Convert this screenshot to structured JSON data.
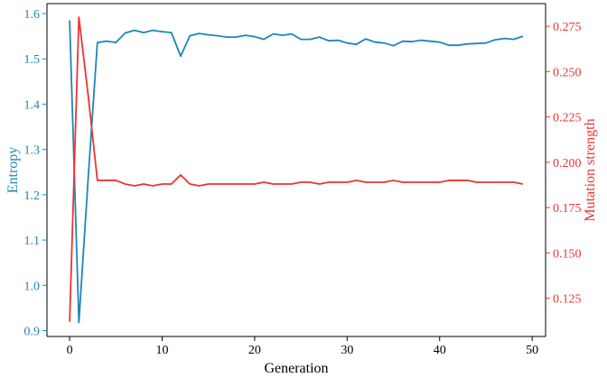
{
  "chart_data": {
    "type": "line",
    "title": "",
    "xlabel": "Generation",
    "ylabel_left": "Entropy",
    "ylabel_right": "Mutation strength",
    "xlim": [
      -2.45,
      51.45
    ],
    "ylim_left": [
      0.887,
      1.622
    ],
    "ylim_right": [
      0.1039,
      0.2875
    ],
    "xticks": [
      0,
      10,
      20,
      30,
      40,
      50
    ],
    "yticks_left": [
      0.9,
      1.0,
      1.1,
      1.2,
      1.3,
      1.4,
      1.5,
      1.6
    ],
    "yticks_right": [
      0.125,
      0.15,
      0.175,
      0.2,
      0.225,
      0.25,
      0.275
    ],
    "grid": false,
    "legend": "none",
    "colors": {
      "entropy": "#1f86b8",
      "mutation": "#ee3333",
      "spine": "#000000"
    },
    "x": [
      0,
      1,
      2,
      3,
      4,
      5,
      6,
      7,
      8,
      9,
      10,
      11,
      12,
      13,
      14,
      15,
      16,
      17,
      18,
      19,
      20,
      21,
      22,
      23,
      24,
      25,
      26,
      27,
      28,
      29,
      30,
      31,
      32,
      33,
      34,
      35,
      36,
      37,
      38,
      39,
      40,
      41,
      42,
      43,
      44,
      45,
      46,
      47,
      48,
      49
    ],
    "series": [
      {
        "axis": "left",
        "values": [
          1.585,
          0.918,
          1.235,
          1.536,
          1.539,
          1.536,
          1.557,
          1.563,
          1.558,
          1.563,
          1.56,
          1.558,
          1.506,
          1.551,
          1.556,
          1.553,
          1.551,
          1.548,
          1.548,
          1.552,
          1.549,
          1.543,
          1.555,
          1.552,
          1.555,
          1.543,
          1.543,
          1.548,
          1.54,
          1.541,
          1.535,
          1.532,
          1.544,
          1.537,
          1.535,
          1.529,
          1.539,
          1.538,
          1.541,
          1.539,
          1.537,
          1.53,
          1.53,
          1.533,
          1.534,
          1.535,
          1.542,
          1.545,
          1.543,
          1.55
        ]
      },
      {
        "axis": "right",
        "values": [
          0.112,
          0.28,
          0.237,
          0.19,
          0.19,
          0.19,
          0.188,
          0.187,
          0.188,
          0.187,
          0.188,
          0.188,
          0.193,
          0.188,
          0.187,
          0.188,
          0.188,
          0.188,
          0.188,
          0.188,
          0.188,
          0.189,
          0.188,
          0.188,
          0.188,
          0.189,
          0.189,
          0.188,
          0.189,
          0.189,
          0.189,
          0.19,
          0.189,
          0.189,
          0.189,
          0.19,
          0.189,
          0.189,
          0.189,
          0.189,
          0.189,
          0.19,
          0.19,
          0.19,
          0.189,
          0.189,
          0.189,
          0.189,
          0.189,
          0.188
        ]
      }
    ]
  }
}
